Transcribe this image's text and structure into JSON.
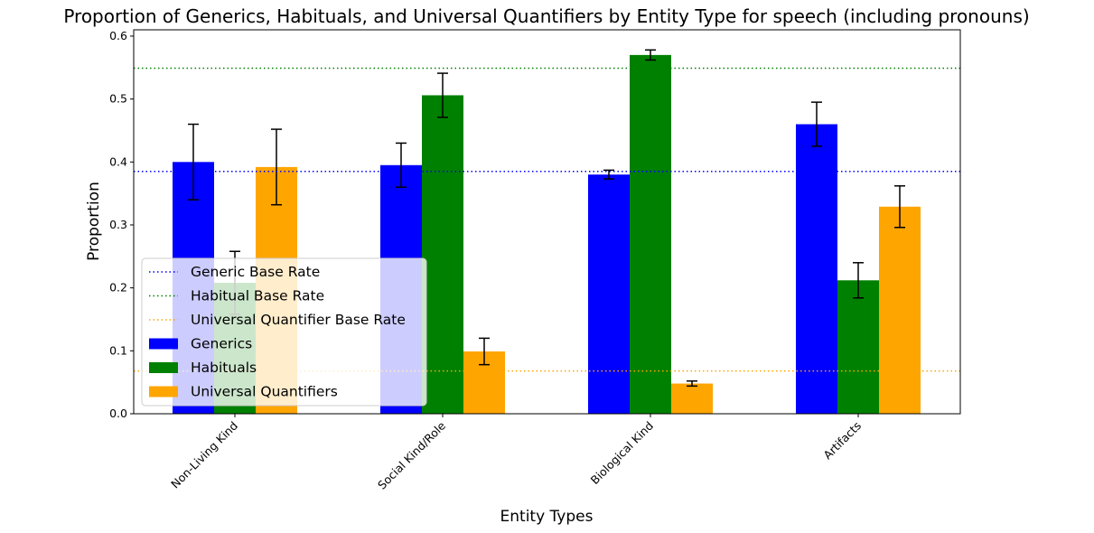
{
  "chart_data": {
    "type": "bar",
    "title": "Proportion of Generics, Habituals, and Universal Quantifiers by Entity Type for speech (including pronouns)",
    "xlabel": "Entity Types",
    "ylabel": "Proportion",
    "categories": [
      "Non-Living Kind",
      "Social Kind/Role",
      "Biological Kind",
      "Artifacts"
    ],
    "ylim": [
      0,
      0.61
    ],
    "yticks": [
      "0.0",
      "0.1",
      "0.2",
      "0.3",
      "0.4",
      "0.5",
      "0.6"
    ],
    "series": [
      {
        "name": "Generics",
        "color": "#0000ff",
        "values": [
          0.4,
          0.395,
          0.38,
          0.46
        ],
        "errors": [
          0.06,
          0.035,
          0.007,
          0.035
        ]
      },
      {
        "name": "Habituals",
        "color": "#008000",
        "values": [
          0.208,
          0.506,
          0.57,
          0.212
        ],
        "errors": [
          0.05,
          0.035,
          0.008,
          0.028
        ]
      },
      {
        "name": "Universal Quantifiers",
        "color": "#ffa500",
        "values": [
          0.392,
          0.099,
          0.048,
          0.329
        ],
        "errors": [
          0.06,
          0.021,
          0.004,
          0.033
        ]
      }
    ],
    "baselines": [
      {
        "name": "Generic Base Rate",
        "color": "#0000ff",
        "value": 0.385
      },
      {
        "name": "Habitual Base Rate",
        "color": "#008000",
        "value": 0.549
      },
      {
        "name": "Universal Quantifier Base Rate",
        "color": "#ffa500",
        "value": 0.068
      }
    ],
    "legend_position": "lower-left",
    "grid": false
  }
}
